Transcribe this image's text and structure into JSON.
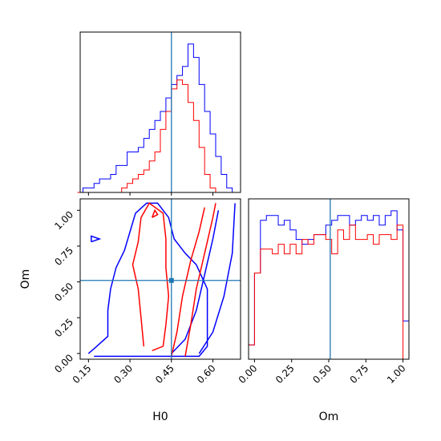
{
  "chart_data": [
    {
      "panel": "H0 marginal",
      "type": "histogram",
      "x": [
        0.12,
        0.14,
        0.16,
        0.18,
        0.2,
        0.22,
        0.24,
        0.26,
        0.28,
        0.3,
        0.32,
        0.34,
        0.36,
        0.38,
        0.4,
        0.42,
        0.44,
        0.46,
        0.48,
        0.5,
        0.52,
        0.54,
        0.56,
        0.58,
        0.6,
        0.62,
        0.64,
        0.66,
        0.68
      ],
      "xlim": [
        0.12,
        0.7
      ],
      "truth": 0.45,
      "series": [
        {
          "color": "#0000ff",
          "values": [
            0,
            1,
            1,
            2,
            3,
            3,
            4,
            6,
            6,
            9,
            9,
            10,
            12,
            14,
            16,
            18,
            21,
            24,
            26,
            28,
            33,
            30,
            24,
            18,
            13,
            8,
            4,
            1,
            0
          ]
        },
        {
          "color": "#ff0000",
          "values": [
            0,
            0,
            0,
            0,
            0,
            0,
            0,
            0,
            1,
            2,
            3,
            4,
            5,
            7,
            9,
            14,
            18,
            23,
            25,
            24,
            20,
            16,
            10,
            4,
            1,
            0,
            0,
            0,
            0
          ]
        }
      ]
    },
    {
      "panel": "H0 vs Om",
      "type": "contour",
      "xlabel": "H0",
      "ylabel": "Om",
      "xlim": [
        0.12,
        0.7
      ],
      "ylim": [
        -0.04,
        1.08
      ],
      "x_ticks": [
        0.15,
        0.3,
        0.45,
        0.6
      ],
      "x_tick_labels": [
        "0.15",
        "0.30",
        "0.45",
        "0.60"
      ],
      "y_ticks": [
        0.0,
        0.25,
        0.5,
        0.75,
        1.0
      ],
      "y_tick_labels": [
        "0.00",
        "0.25",
        "0.50",
        "0.75",
        "1.00"
      ],
      "truth": {
        "x": 0.45,
        "y": 0.51
      },
      "contours": [
        {
          "color": "#0000ff",
          "points": [
            [
              0.15,
              0.0
            ],
            [
              0.18,
              0.05
            ],
            [
              0.22,
              0.12
            ],
            [
              0.22,
              0.3
            ],
            [
              0.23,
              0.45
            ],
            [
              0.25,
              0.6
            ],
            [
              0.28,
              0.72
            ],
            [
              0.3,
              0.85
            ],
            [
              0.32,
              0.98
            ],
            [
              0.36,
              1.05
            ],
            [
              0.4,
              1.05
            ],
            [
              0.44,
              0.95
            ],
            [
              0.46,
              0.8
            ],
            [
              0.5,
              0.7
            ],
            [
              0.54,
              0.62
            ],
            [
              0.58,
              0.45
            ],
            [
              0.58,
              0.25
            ],
            [
              0.58,
              0.05
            ],
            [
              0.55,
              -0.02
            ],
            [
              0.45,
              -0.02
            ],
            [
              0.35,
              -0.02
            ],
            [
              0.25,
              -0.02
            ],
            [
              0.17,
              -0.02
            ]
          ]
        },
        {
          "color": "#0000ff",
          "points": [
            [
              0.45,
              0.0
            ],
            [
              0.5,
              0.1
            ],
            [
              0.54,
              0.3
            ],
            [
              0.57,
              0.55
            ],
            [
              0.6,
              0.8
            ],
            [
              0.62,
              1.0
            ]
          ]
        },
        {
          "color": "#0000ff",
          "points": [
            [
              0.55,
              0.0
            ],
            [
              0.6,
              0.15
            ],
            [
              0.64,
              0.4
            ],
            [
              0.67,
              0.7
            ],
            [
              0.68,
              1.05
            ]
          ]
        },
        {
          "color": "#0000ff",
          "points": [
            [
              0.16,
              0.78
            ],
            [
              0.19,
              0.8
            ],
            [
              0.16,
              0.82
            ],
            [
              0.16,
              0.78
            ]
          ]
        },
        {
          "color": "#ff0000",
          "points": [
            [
              0.35,
              0.05
            ],
            [
              0.34,
              0.25
            ],
            [
              0.33,
              0.45
            ],
            [
              0.31,
              0.62
            ],
            [
              0.33,
              0.78
            ],
            [
              0.34,
              0.95
            ],
            [
              0.37,
              1.05
            ],
            [
              0.42,
              0.98
            ],
            [
              0.43,
              0.8
            ],
            [
              0.43,
              0.6
            ],
            [
              0.44,
              0.4
            ],
            [
              0.43,
              0.2
            ],
            [
              0.42,
              0.05
            ],
            [
              0.38,
              0.02
            ]
          ]
        },
        {
          "color": "#ff0000",
          "points": [
            [
              0.45,
              -0.02
            ],
            [
              0.47,
              0.15
            ],
            [
              0.49,
              0.4
            ],
            [
              0.52,
              0.65
            ],
            [
              0.55,
              0.85
            ],
            [
              0.57,
              1.02
            ]
          ]
        },
        {
          "color": "#ff0000",
          "points": [
            [
              0.5,
              -0.02
            ],
            [
              0.52,
              0.2
            ],
            [
              0.54,
              0.45
            ],
            [
              0.57,
              0.7
            ],
            [
              0.6,
              0.95
            ],
            [
              0.61,
              1.05
            ]
          ]
        },
        {
          "color": "#ff0000",
          "points": [
            [
              0.38,
              0.95
            ],
            [
              0.4,
              0.97
            ],
            [
              0.39,
              1.0
            ],
            [
              0.38,
              0.95
            ]
          ]
        }
      ]
    },
    {
      "panel": "Om marginal",
      "type": "histogram",
      "xlabel": "Om",
      "xlim": [
        -0.04,
        1.04
      ],
      "x_ticks": [
        0.0,
        0.25,
        0.5,
        0.75,
        1.0
      ],
      "x_tick_labels": [
        "0.00",
        "0.25",
        "0.50",
        "0.75",
        "1.00"
      ],
      "truth": 0.51,
      "series": [
        {
          "color": "#0000ff",
          "values": [
            3,
            18,
            29,
            30,
            30,
            28,
            29,
            27,
            25,
            24,
            25,
            26,
            26,
            28,
            29,
            30,
            30,
            28,
            29,
            30,
            29,
            30,
            28,
            30,
            31,
            27,
            8
          ]
        },
        {
          "color": "#ff0000",
          "values": [
            3,
            18,
            23,
            23,
            22,
            24,
            22,
            24,
            22,
            25,
            24,
            26,
            26,
            25,
            22,
            27,
            25,
            28,
            25,
            25,
            26,
            24,
            26,
            26,
            25,
            28,
            0
          ]
        }
      ]
    }
  ]
}
